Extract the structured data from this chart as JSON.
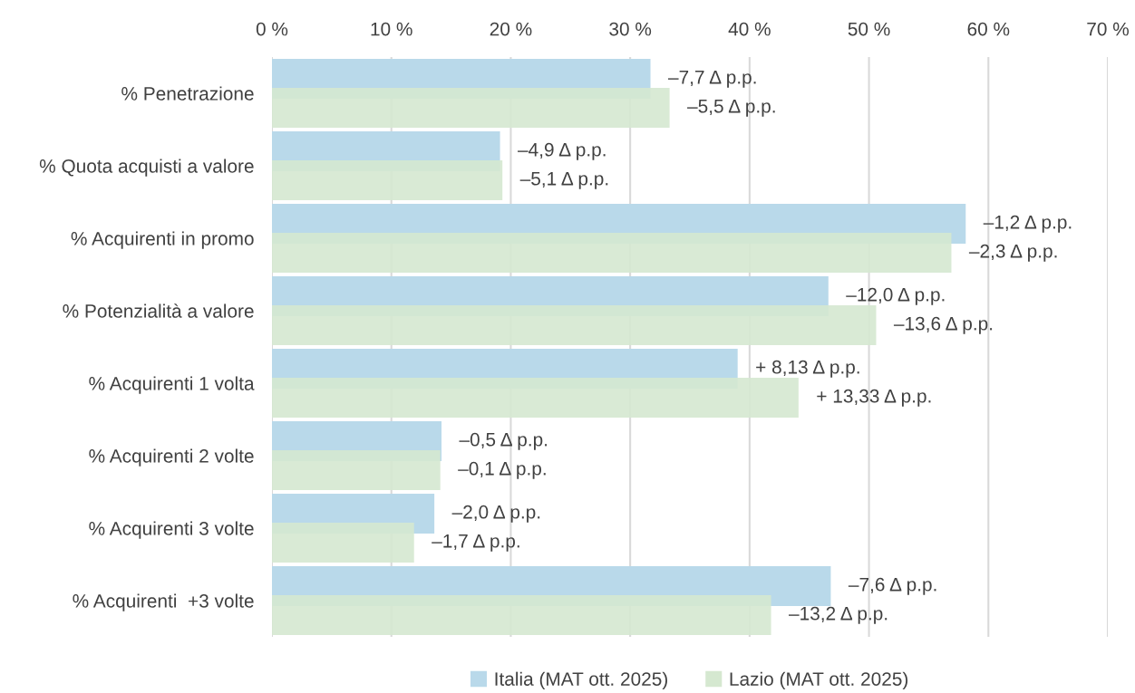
{
  "chart_data": {
    "type": "bar",
    "orientation": "horizontal",
    "categories": [
      "% Penetrazione",
      "% Quota acquisti a valore",
      "% Acquirenti in promo",
      "% Potenzialità a valore",
      "% Acquirenti 1 volta",
      "% Acquirenti 2 volte",
      "% Acquirenti 3 volte",
      "% Acquirenti  +3 volte"
    ],
    "series": [
      {
        "name": "Italia (MAT ott. 2025)",
        "color": "#b9d9ea",
        "values": [
          31.7,
          19.1,
          58.1,
          46.6,
          39.0,
          14.2,
          13.6,
          46.8
        ]
      },
      {
        "name": "Lazio (MAT ott. 2025)",
        "color": "#d5e8d0",
        "values": [
          33.3,
          19.3,
          56.9,
          50.6,
          44.1,
          14.1,
          11.9,
          41.8
        ]
      }
    ],
    "annotations": [
      {
        "text": "–7,7 Δ p.p.",
        "x": 31.7,
        "y": "% Penetrazione"
      },
      {
        "text": "–5,5 Δ p.p.",
        "x": 33.3,
        "y": "% Penetrazione"
      },
      {
        "text": "–4,9 Δ p.p.",
        "x": 19.1,
        "y": "% Quota acquisti a valore"
      },
      {
        "text": "–5,1 Δ p.p.",
        "x": 19.3,
        "y": "% Quota acquisti a valore"
      },
      {
        "text": "–1,2 Δ p.p.",
        "x": 58.1,
        "y": "% Acquirenti in promo"
      },
      {
        "text": "–2,3 Δ p.p.",
        "x": 56.9,
        "y": "% Acquirenti in promo"
      },
      {
        "text": "–12,0 Δ p.p.",
        "x": 46.6,
        "y": "% Potenzialità a valore"
      },
      {
        "text": "–13,6 Δ p.p.",
        "x": 50.6,
        "y": "% Potenzialità a valore"
      },
      {
        "text": "+ 8,13 Δ p.p.",
        "x": 39.0,
        "y": "% Acquirenti 1 volta"
      },
      {
        "text": "+ 13,33 Δ p.p.",
        "x": 44.1,
        "y": "% Acquirenti 1 volta"
      },
      {
        "text": "–0,5 Δ p.p.",
        "x": 14.2,
        "y": "% Acquirenti 2 volte"
      },
      {
        "text": "–0,1 Δ p.p.",
        "x": 14.1,
        "y": "% Acquirenti 2 volte"
      },
      {
        "text": "–2,0 Δ p.p.",
        "x": 13.6,
        "y": "% Acquirenti 3 volte"
      },
      {
        "text": "–1,7 Δ p.p.",
        "x": 11.9,
        "y": "% Acquirenti 3 volte"
      },
      {
        "text": "–7,6 Δ p.p.",
        "x": 46.8,
        "y": "% Acquirenti  +3 volte"
      },
      {
        "text": "–13,2 Δ p.p.",
        "x": 41.8,
        "y": "% Acquirenti  +3 volte"
      }
    ],
    "xlim": [
      0,
      70
    ],
    "xticks": [
      {
        "value": 0,
        "label": "0 %"
      },
      {
        "value": 10,
        "label": "10 %"
      },
      {
        "value": 20,
        "label": "20 %"
      },
      {
        "value": 30,
        "label": "30 %"
      },
      {
        "value": 40,
        "label": "40 %"
      },
      {
        "value": 50,
        "label": "50 %"
      },
      {
        "value": 60,
        "label": "60 %"
      },
      {
        "value": 70,
        "label": "70 %"
      }
    ],
    "grid": "x",
    "legend": "bottom"
  }
}
